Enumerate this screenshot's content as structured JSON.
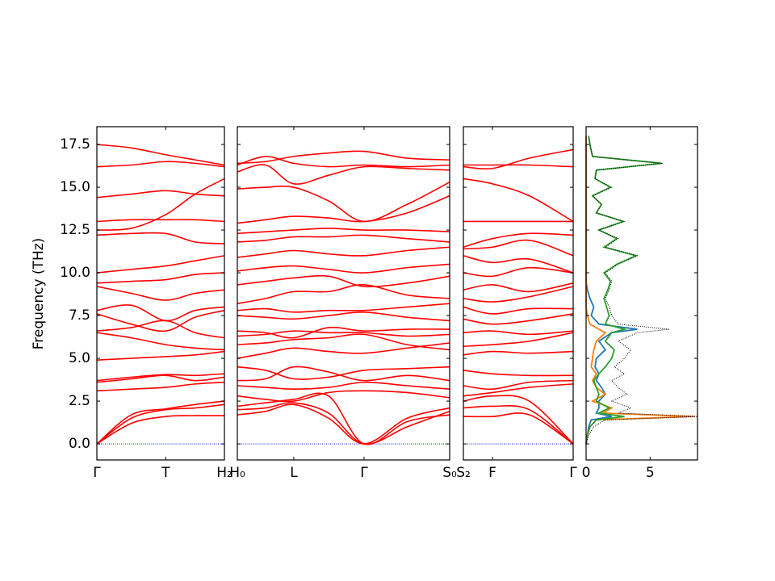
{
  "chart_data": {
    "type": "band_structure",
    "ylabel": "Frequency (THz)",
    "ylim": [
      -0.94,
      18.54
    ],
    "yticks": [
      {
        "value": 0,
        "label": "0.0"
      },
      {
        "value": 2.5,
        "label": "2.5"
      },
      {
        "value": 5,
        "label": "5.0"
      },
      {
        "value": 7.5,
        "label": "7.5"
      },
      {
        "value": 10,
        "label": "10.0"
      },
      {
        "value": 12.5,
        "label": "12.5"
      },
      {
        "value": 15,
        "label": "15.0"
      },
      {
        "value": 17.5,
        "label": "17.5"
      }
    ],
    "zero_line": {
      "value": 0,
      "color": "#0000cc"
    },
    "panels": [
      {
        "type": "line",
        "color": "#ff0000",
        "xlim": [
          0,
          1
        ],
        "xticks": [
          {
            "value": 0,
            "label": "Γ"
          },
          {
            "value": 0.54,
            "label": "T"
          },
          {
            "value": 1,
            "label": "H₂"
          }
        ],
        "x": [
          0,
          0.27,
          0.54,
          0.77,
          1
        ],
        "series": [
          {
            "values": [
              0,
              1.2,
              1.6,
              1.65,
              1.65
            ]
          },
          {
            "values": [
              0,
              1.5,
              2.0,
              2.1,
              2.3
            ]
          },
          {
            "values": [
              0,
              1.7,
              2.05,
              2.3,
              2.5
            ]
          },
          {
            "values": [
              3.1,
              3.2,
              3.3,
              3.5,
              3.6
            ]
          },
          {
            "values": [
              3.6,
              3.8,
              4.0,
              3.7,
              3.9
            ]
          },
          {
            "values": [
              3.7,
              3.9,
              4.05,
              4.0,
              4.1
            ]
          },
          {
            "values": [
              4.9,
              5.0,
              5.1,
              5.2,
              5.4
            ]
          },
          {
            "values": [
              6.5,
              6.2,
              5.8,
              5.6,
              5.5
            ]
          },
          {
            "values": [
              6.6,
              6.8,
              7.2,
              6.5,
              6.2
            ]
          },
          {
            "values": [
              7.6,
              7.0,
              6.6,
              7.4,
              7.8
            ]
          },
          {
            "values": [
              7.8,
              8.1,
              7.2,
              7.8,
              8.0
            ]
          },
          {
            "values": [
              9.2,
              8.8,
              8.4,
              8.8,
              9.0
            ]
          },
          {
            "values": [
              9.4,
              9.5,
              9.6,
              9.9,
              10.0
            ]
          },
          {
            "values": [
              10.0,
              10.2,
              10.4,
              10.7,
              11.0
            ]
          },
          {
            "values": [
              12.2,
              12.3,
              12.3,
              11.8,
              11.7
            ]
          },
          {
            "values": [
              12.5,
              12.6,
              13.4,
              14.6,
              15.5
            ]
          },
          {
            "values": [
              13.0,
              13.1,
              13.1,
              13.1,
              13.0
            ]
          },
          {
            "values": [
              14.4,
              14.6,
              14.8,
              14.6,
              14.5
            ]
          },
          {
            "values": [
              16.2,
              16.3,
              16.5,
              16.4,
              16.2
            ]
          },
          {
            "values": [
              17.5,
              17.3,
              16.9,
              16.6,
              16.3
            ]
          }
        ]
      },
      {
        "type": "line",
        "color": "#ff0000",
        "xlim": [
          0,
          1
        ],
        "xticks": [
          {
            "value": 0,
            "label": "H₀"
          },
          {
            "value": 0.266,
            "label": "L"
          },
          {
            "value": 0.597,
            "label": "Γ"
          },
          {
            "value": 1,
            "label": "S₀"
          }
        ],
        "x": [
          0,
          0.133,
          0.266,
          0.43,
          0.597,
          0.8,
          1
        ],
        "series": [
          {
            "values": [
              1.7,
              1.9,
              2.3,
              1.5,
              0,
              1.5,
              2.1
            ]
          },
          {
            "values": [
              2.0,
              2.1,
              2.4,
              1.8,
              0,
              1.0,
              1.9
            ]
          },
          {
            "values": [
              2.2,
              2.4,
              2.6,
              2.8,
              0,
              1.3,
              1.7
            ]
          },
          {
            "values": [
              2.8,
              2.6,
              2.5,
              3.0,
              3.1,
              3.0,
              2.7
            ]
          },
          {
            "values": [
              3.4,
              3.3,
              3.2,
              3.3,
              3.6,
              3.4,
              3.2
            ]
          },
          {
            "values": [
              3.7,
              3.8,
              4.5,
              4.2,
              3.7,
              4.0,
              3.7
            ]
          },
          {
            "values": [
              4.5,
              4.3,
              3.8,
              3.9,
              4.3,
              4.4,
              4.5
            ]
          },
          {
            "values": [
              5.0,
              5.3,
              5.6,
              5.4,
              5.3,
              5.6,
              5.9
            ]
          },
          {
            "values": [
              5.8,
              5.9,
              6.1,
              6.2,
              6.4,
              5.8,
              5.5
            ]
          },
          {
            "values": [
              6.3,
              6.4,
              6.6,
              6.5,
              6.5,
              6.3,
              6.4
            ]
          },
          {
            "values": [
              6.6,
              6.5,
              6.2,
              6.8,
              6.6,
              6.7,
              6.7
            ]
          },
          {
            "values": [
              7.5,
              7.4,
              7.3,
              7.5,
              7.7,
              7.4,
              7.2
            ]
          },
          {
            "values": [
              7.8,
              7.9,
              7.7,
              7.8,
              7.8,
              8.0,
              8.2
            ]
          },
          {
            "values": [
              8.2,
              8.5,
              8.9,
              8.9,
              9.3,
              8.7,
              8.5
            ]
          },
          {
            "values": [
              9.3,
              9.5,
              9.7,
              9.8,
              9.2,
              9.4,
              9.8
            ]
          },
          {
            "values": [
              10.1,
              10.3,
              10.4,
              10.2,
              10.0,
              10.3,
              10.5
            ]
          },
          {
            "values": [
              10.9,
              11.1,
              11.3,
              11.1,
              11.0,
              11.3,
              11.5
            ]
          },
          {
            "values": [
              11.8,
              11.9,
              12.1,
              12.1,
              12.2,
              12.0,
              11.8
            ]
          },
          {
            "values": [
              12.3,
              12.4,
              12.5,
              12.6,
              12.5,
              12.5,
              12.4
            ]
          },
          {
            "values": [
              12.9,
              13.1,
              13.3,
              13.2,
              13.0,
              13.5,
              14.5
            ]
          },
          {
            "values": [
              14.9,
              15.0,
              15.0,
              14.2,
              13.0,
              14.0,
              15.3
            ]
          },
          {
            "values": [
              15.9,
              16.3,
              15.2,
              15.7,
              16.2,
              16.1,
              16.0
            ]
          },
          {
            "values": [
              16.3,
              16.8,
              16.4,
              16.2,
              16.3,
              16.2,
              16.3
            ]
          },
          {
            "values": [
              16.4,
              16.5,
              16.8,
              17.0,
              17.1,
              16.7,
              16.6
            ]
          }
        ]
      },
      {
        "type": "line",
        "color": "#ff0000",
        "xlim": [
          0,
          1
        ],
        "xticks": [
          {
            "value": 0,
            "label": "S₂"
          },
          {
            "value": 0.265,
            "label": "F"
          },
          {
            "value": 1,
            "label": "Γ"
          }
        ],
        "x": [
          0,
          0.265,
          0.6,
          1
        ],
        "series": [
          {
            "values": [
              1.6,
              1.6,
              1.7,
              0
            ]
          },
          {
            "values": [
              2.1,
              2.2,
              2.0,
              0
            ]
          },
          {
            "values": [
              2.5,
              2.8,
              2.5,
              0
            ]
          },
          {
            "values": [
              2.8,
              3.0,
              3.3,
              3.5
            ]
          },
          {
            "values": [
              3.4,
              3.2,
              3.6,
              3.7
            ]
          },
          {
            "values": [
              4.3,
              4.1,
              4.0,
              4.0
            ]
          },
          {
            "values": [
              5.2,
              5.4,
              5.3,
              5.4
            ]
          },
          {
            "values": [
              5.7,
              5.8,
              6.0,
              6.5
            ]
          },
          {
            "values": [
              6.5,
              6.6,
              6.4,
              6.6
            ]
          },
          {
            "values": [
              7.3,
              7.0,
              7.2,
              7.6
            ]
          },
          {
            "values": [
              8.0,
              7.6,
              7.9,
              7.9
            ]
          },
          {
            "values": [
              8.5,
              8.3,
              8.6,
              9.2
            ]
          },
          {
            "values": [
              9.0,
              9.3,
              8.9,
              9.4
            ]
          },
          {
            "values": [
              10.0,
              9.8,
              10.3,
              10.0
            ]
          },
          {
            "values": [
              11.0,
              10.6,
              10.8,
              10.0
            ]
          },
          {
            "values": [
              11.4,
              11.5,
              11.9,
              11.0
            ]
          },
          {
            "values": [
              11.5,
              12.0,
              12.3,
              12.2
            ]
          },
          {
            "values": [
              13.0,
              13.0,
              13.0,
              13.0
            ]
          },
          {
            "values": [
              15.5,
              15.2,
              14.5,
              13.0
            ]
          },
          {
            "values": [
              16.2,
              16.1,
              16.7,
              17.2
            ]
          },
          {
            "values": [
              16.3,
              16.3,
              16.3,
              16.2
            ]
          }
        ]
      }
    ],
    "dos": {
      "type": "dos",
      "xlim": [
        0,
        8.7
      ],
      "xticks": [
        0,
        5
      ],
      "frequencies": [
        0,
        0.5,
        1.0,
        1.4,
        1.6,
        1.8,
        2.1,
        2.5,
        2.9,
        3.3,
        3.7,
        4.1,
        4.5,
        5.0,
        5.5,
        6.0,
        6.5,
        6.7,
        7.0,
        7.5,
        8.0,
        8.5,
        9.0,
        9.5,
        10.0,
        10.5,
        11.0,
        11.5,
        12.0,
        12.5,
        13.0,
        13.5,
        14.0,
        14.5,
        15.0,
        15.5,
        16.0,
        16.4,
        16.8,
        17.5,
        18.0
      ],
      "series": [
        {
          "color": "#1f77b4",
          "dashed": false,
          "values": [
            0,
            0.1,
            0.2,
            0.4,
            2.0,
            0.8,
            1.0,
            1.0,
            1.5,
            1.2,
            0.8,
            1.0,
            0.7,
            0.8,
            1.5,
            1.0,
            2.0,
            4.0,
            1.0,
            0.4,
            0.6,
            0.3,
            0.1,
            0,
            0,
            0,
            0,
            0,
            0,
            0,
            0,
            0,
            0,
            0,
            0,
            0,
            0,
            0,
            0,
            0,
            0
          ]
        },
        {
          "color": "#ff7f0e",
          "dashed": false,
          "values": [
            0,
            0.1,
            0.3,
            0.8,
            8.5,
            1.3,
            2.0,
            0.5,
            1.5,
            0.8,
            0.5,
            0.8,
            0.4,
            0.5,
            0.6,
            0.8,
            1.5,
            1.0,
            0.3,
            0.1,
            0,
            0,
            0,
            0,
            0,
            0,
            0,
            0,
            0,
            0,
            0,
            0,
            0,
            0,
            0,
            0,
            0,
            0,
            0,
            0,
            0
          ]
        },
        {
          "color": "#2ca02c",
          "dashed": false,
          "values": [
            0,
            0.1,
            0.3,
            0.8,
            3.0,
            1.0,
            1.8,
            0.8,
            1.0,
            0.8,
            0.6,
            1.0,
            1.5,
            2.0,
            2.2,
            1.5,
            2.0,
            3.0,
            1.5,
            1.8,
            1.6,
            1.4,
            1.7,
            1.9,
            1.4,
            2.4,
            3.9,
            1.4,
            2.4,
            1.0,
            2.9,
            0.8,
            1.2,
            0.5,
            1.9,
            0.7,
            0.8,
            5.9,
            0.5,
            0.3,
            0.2
          ]
        },
        {
          "color": "#000000",
          "dashed": true,
          "values": [
            0,
            0.2,
            0.6,
            1.5,
            8.7,
            2.5,
            3.5,
            2.0,
            3.2,
            2.5,
            2.0,
            3.0,
            2.2,
            3.0,
            3.5,
            2.5,
            4.0,
            6.5,
            2.5,
            2.0,
            1.8,
            1.5,
            1.8,
            2.0,
            1.5,
            2.5,
            4.0,
            1.5,
            2.5,
            1.0,
            3.0,
            0.8,
            1.2,
            0.5,
            2.0,
            0.7,
            0.8,
            6.0,
            0.5,
            0.3,
            0.2
          ]
        }
      ]
    }
  }
}
